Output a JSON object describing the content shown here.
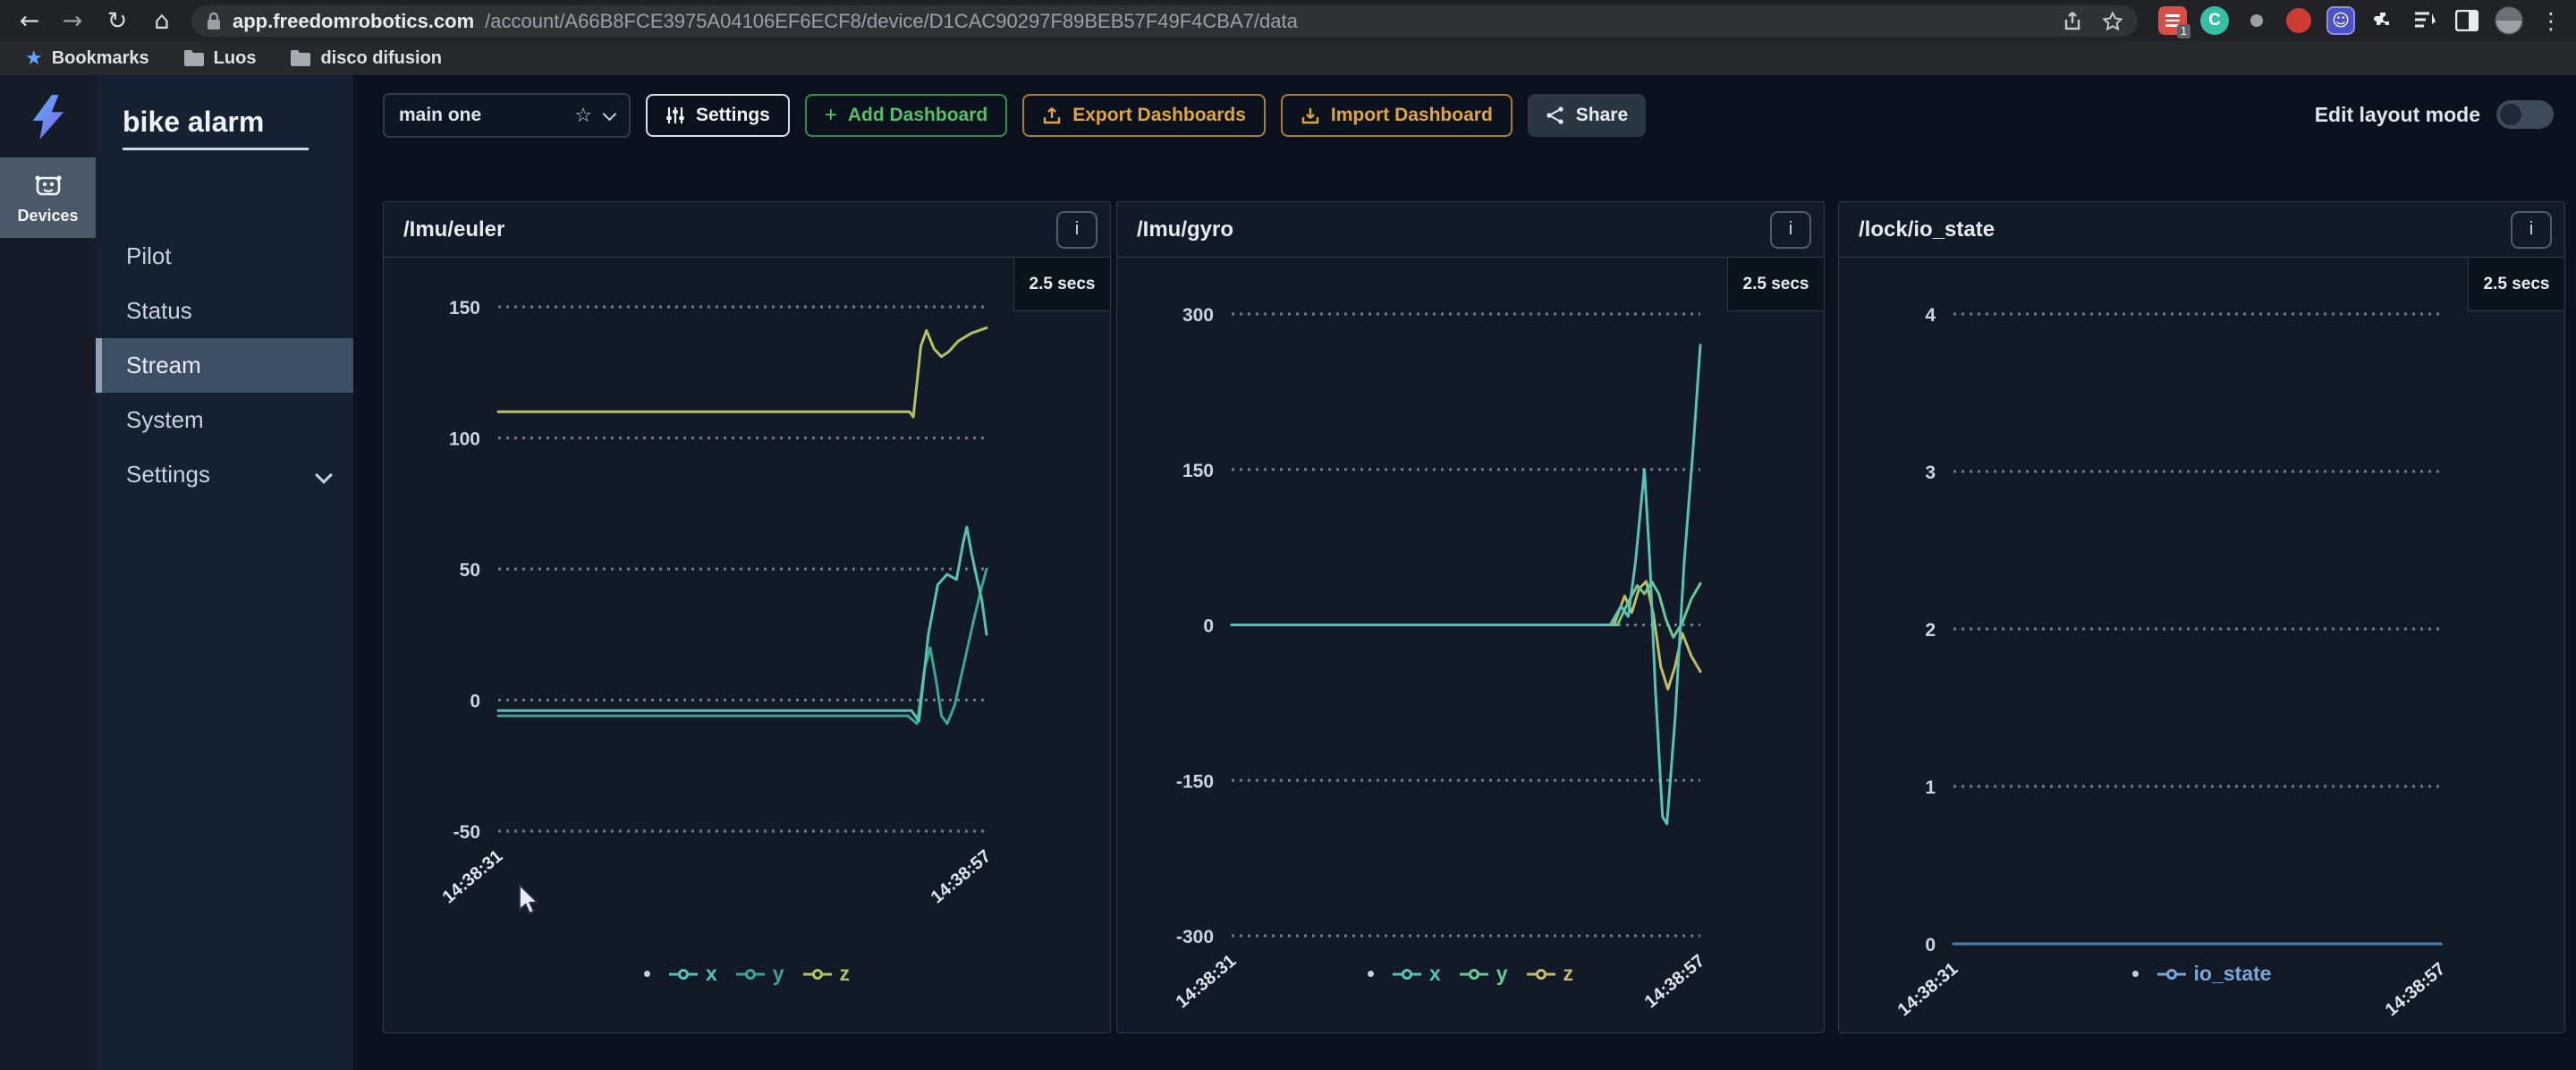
{
  "browser": {
    "url_domain": "app.freedomrobotics.com",
    "url_path": "/account/A66B8FCE3975A04106EF6ECF8/device/D1CAC90297F89BEB57F49F4CBA7/data",
    "bookmarks": [
      {
        "label": "Bookmarks",
        "icon": "star"
      },
      {
        "label": "Luos",
        "icon": "folder"
      },
      {
        "label": "disco difusion",
        "icon": "folder"
      }
    ],
    "extension_badge": "1"
  },
  "rail": {
    "devices_label": "Devices"
  },
  "sidebar": {
    "device_name": "bike alarm",
    "items": [
      {
        "label": "Pilot",
        "selected": false,
        "chevron": false
      },
      {
        "label": "Status",
        "selected": false,
        "chevron": false
      },
      {
        "label": "Stream",
        "selected": true,
        "chevron": false
      },
      {
        "label": "System",
        "selected": false,
        "chevron": false
      },
      {
        "label": "Settings",
        "selected": false,
        "chevron": true
      }
    ]
  },
  "toolbar": {
    "dashboard_select": "main one",
    "settings_label": "Settings",
    "add_dashboard_label": "Add Dashboard",
    "export_label": "Export Dashboards",
    "import_label": "Import Dashboard",
    "share_label": "Share",
    "edit_layout_label": "Edit layout mode"
  },
  "panels_common": {
    "info_button_label": "i"
  },
  "chart_data": [
    {
      "type": "line",
      "title": "/Imu/euler",
      "window_label": "2.5 secs",
      "x_labels": [
        "14:38:31",
        "14:38:57"
      ],
      "x_domain_seconds": [
        0,
        26
      ],
      "yticks": [
        150,
        100,
        50,
        0,
        -50
      ],
      "ylim": [
        -60,
        160
      ],
      "grid": "horizontal-dotted",
      "legend_position": "bottom",
      "series": [
        {
          "name": "z",
          "color": "#b6c25f",
          "points": [
            [
              0,
              110
            ],
            [
              21.9,
              110
            ],
            [
              22.1,
              108
            ],
            [
              22.5,
              135
            ],
            [
              22.8,
              141
            ],
            [
              23.2,
              134
            ],
            [
              23.6,
              131
            ],
            [
              24,
              133
            ],
            [
              24.5,
              137
            ],
            [
              25.2,
              140
            ],
            [
              26,
              142
            ]
          ]
        },
        {
          "name": "y",
          "color": "#3fa496",
          "points": [
            [
              0,
              -6
            ],
            [
              21.8,
              -6
            ],
            [
              22.3,
              -9
            ],
            [
              22.7,
              12
            ],
            [
              23,
              20
            ],
            [
              23.3,
              8
            ],
            [
              23.6,
              -6
            ],
            [
              23.9,
              -9
            ],
            [
              24.3,
              -2
            ],
            [
              24.8,
              14
            ],
            [
              25.3,
              30
            ],
            [
              25.7,
              42
            ],
            [
              26,
              50
            ]
          ]
        },
        {
          "name": "x",
          "color": "#57c2b7",
          "points": [
            [
              0,
              -4
            ],
            [
              22,
              -4
            ],
            [
              22.4,
              -8
            ],
            [
              22.9,
              25
            ],
            [
              23.4,
              44
            ],
            [
              23.9,
              48
            ],
            [
              24.4,
              46
            ],
            [
              24.75,
              60
            ],
            [
              24.95,
              66
            ],
            [
              25.2,
              56
            ],
            [
              25.5,
              46
            ],
            [
              25.75,
              38
            ],
            [
              26,
              25
            ]
          ]
        }
      ],
      "legend_order": [
        "x",
        "y",
        "z"
      ]
    },
    {
      "type": "line",
      "title": "/Imu/gyro",
      "window_label": "2.5 secs",
      "x_labels": [
        "14:38:31",
        "14:38:57"
      ],
      "x_domain_seconds": [
        0,
        26
      ],
      "yticks": [
        300,
        150,
        0,
        -150,
        -300
      ],
      "ylim": [
        -320,
        320
      ],
      "grid": "horizontal-dotted",
      "legend_position": "bottom",
      "series": [
        {
          "name": "z",
          "color": "#c2bd68",
          "points": [
            [
              0,
              0
            ],
            [
              21.2,
              0
            ],
            [
              21.8,
              28
            ],
            [
              22.2,
              12
            ],
            [
              22.6,
              35
            ],
            [
              23,
              42
            ],
            [
              23.4,
              10
            ],
            [
              23.8,
              -40
            ],
            [
              24.2,
              -62
            ],
            [
              24.6,
              -40
            ],
            [
              25,
              -8
            ],
            [
              25.5,
              -30
            ],
            [
              26,
              -45
            ]
          ]
        },
        {
          "name": "y",
          "color": "#6fc795",
          "points": [
            [
              0,
              0
            ],
            [
              21.4,
              0
            ],
            [
              22,
              22
            ],
            [
              22.5,
              38
            ],
            [
              22.9,
              30
            ],
            [
              23.3,
              42
            ],
            [
              23.7,
              30
            ],
            [
              24.1,
              5
            ],
            [
              24.5,
              -12
            ],
            [
              25,
              2
            ],
            [
              25.5,
              25
            ],
            [
              26,
              40
            ]
          ]
        },
        {
          "name": "x",
          "color": "#57c2b7",
          "points": [
            [
              0,
              0
            ],
            [
              21,
              0
            ],
            [
              21.6,
              18
            ],
            [
              22,
              8
            ],
            [
              22.4,
              60
            ],
            [
              22.9,
              150
            ],
            [
              23.2,
              60
            ],
            [
              23.5,
              -60
            ],
            [
              23.9,
              -185
            ],
            [
              24.15,
              -192
            ],
            [
              24.6,
              -90
            ],
            [
              25.1,
              60
            ],
            [
              25.6,
              170
            ],
            [
              26,
              270
            ]
          ]
        }
      ],
      "legend_order": [
        "x",
        "y",
        "z"
      ]
    },
    {
      "type": "line",
      "title": "/lock/io_state",
      "window_label": "2.5 secs",
      "x_labels": [
        "14:38:31",
        "14:38:57"
      ],
      "x_domain_seconds": [
        0,
        26
      ],
      "yticks": [
        4,
        3,
        2,
        1,
        0
      ],
      "ylim": [
        -0.2,
        4.3
      ],
      "grid": "horizontal-dotted",
      "legend_position": "bottom",
      "series": [
        {
          "name": "io_state",
          "color": "#4d80ae",
          "legend_color": "#7ca6d6",
          "points": [
            [
              0,
              0
            ],
            [
              26,
              0
            ]
          ]
        }
      ],
      "legend_order": [
        "io_state"
      ]
    }
  ]
}
